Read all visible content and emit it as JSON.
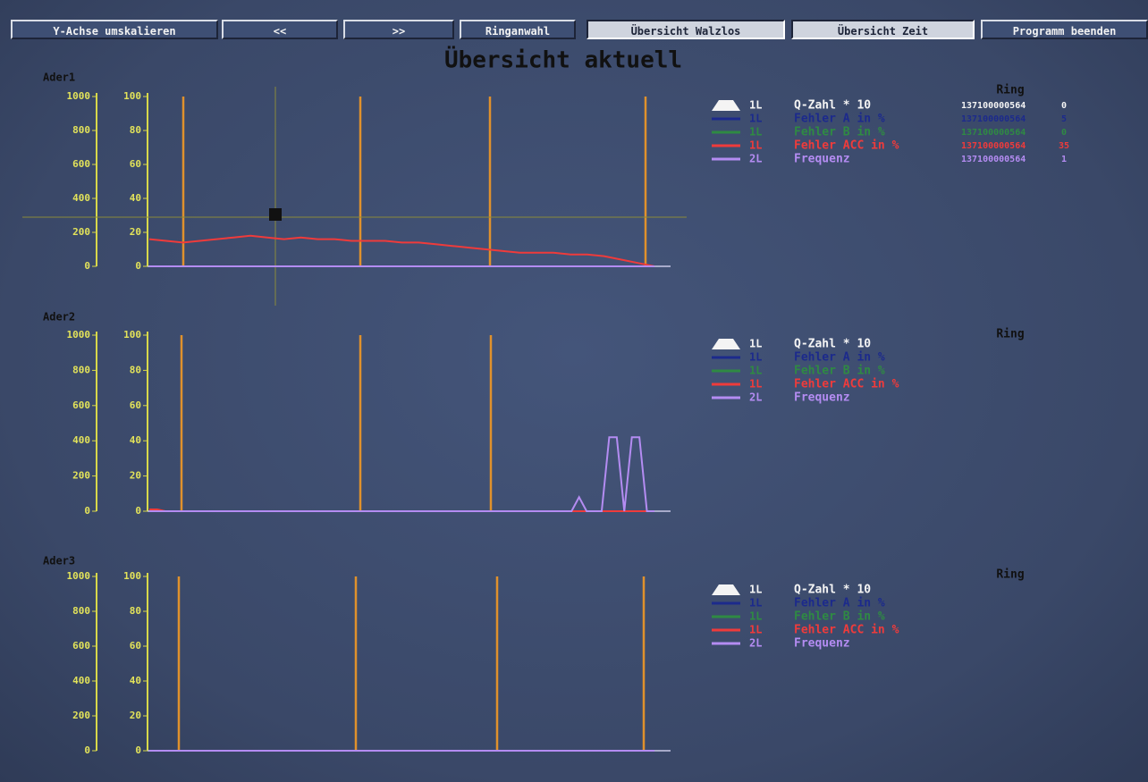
{
  "toolbar": {
    "buttons": [
      "Y-Achse umskalieren",
      "<<",
      ">>",
      "Ringanwahl",
      "Übersicht Walzlos",
      "Übersicht Zeit",
      "Programm beenden"
    ]
  },
  "title": "Übersicht aktuell",
  "left_axis_ticks": [
    0,
    200,
    400,
    600,
    800,
    1000
  ],
  "right_axis_ticks": [
    0,
    20,
    40,
    60,
    80,
    100
  ],
  "right_axis_max": 100,
  "ring_label": "Ring",
  "legend": [
    {
      "tag": "1L",
      "label": "Q-Zahl * 10",
      "color": "#f4f4f4"
    },
    {
      "tag": "1L",
      "label": "Fehler A in %",
      "color": "#1c2a8c"
    },
    {
      "tag": "1L",
      "label": "Fehler B in %",
      "color": "#2f8a43"
    },
    {
      "tag": "1L",
      "label": "Fehler ACC in %",
      "color": "#ef3b3b"
    },
    {
      "tag": "2L",
      "label": "Frequenz",
      "color": "#b48cf2"
    }
  ],
  "panels": [
    {
      "name": "Ader1",
      "ring_values": [
        {
          "id": "137100000564",
          "value": "0"
        },
        {
          "id": "137100000564",
          "value": "5"
        },
        {
          "id": "137100000564",
          "value": "0"
        },
        {
          "id": "137100000564",
          "value": "35"
        },
        {
          "id": "137100000564",
          "value": "1"
        }
      ],
      "series": [
        {
          "legend": 3,
          "values": [
            16,
            15,
            14,
            15,
            16,
            17,
            18,
            17,
            16,
            17,
            16,
            16,
            15,
            15,
            15,
            14,
            14,
            13,
            12,
            11,
            10,
            9,
            8,
            8,
            8,
            7,
            7,
            6,
            4,
            2,
            0
          ]
        },
        {
          "legend": 4,
          "values": [
            0,
            0,
            0,
            0,
            0,
            0,
            0,
            0,
            0,
            0,
            0,
            0,
            0,
            0,
            0,
            0,
            0,
            0,
            0,
            0,
            0,
            0,
            0,
            0,
            0,
            0,
            0,
            0,
            0,
            0,
            0
          ]
        }
      ]
    },
    {
      "name": "Ader2",
      "series": [
        {
          "legend": 3,
          "values": [
            1,
            1,
            0,
            0,
            0,
            0,
            0,
            0,
            0,
            0,
            0,
            0,
            0,
            0,
            0,
            0,
            0,
            0,
            0,
            0,
            0,
            0,
            0,
            0,
            0,
            0,
            0,
            0,
            0,
            0,
            0,
            0,
            0,
            0,
            0,
            0,
            0,
            0,
            0,
            0,
            0,
            0,
            0,
            0,
            0,
            0,
            0,
            0,
            0,
            0,
            0,
            0,
            0,
            0,
            0,
            0,
            0,
            0,
            0,
            0,
            0,
            0,
            0,
            0
          ]
        },
        {
          "legend": 4,
          "values": [
            0,
            0,
            0,
            0,
            0,
            0,
            0,
            0,
            0,
            0,
            0,
            0,
            0,
            0,
            0,
            0,
            0,
            0,
            0,
            0,
            0,
            0,
            0,
            0,
            0,
            0,
            0,
            0,
            0,
            0,
            0,
            0,
            0,
            0,
            0,
            0,
            0,
            0,
            0,
            0,
            0,
            0,
            0,
            0,
            0,
            0,
            0,
            0,
            0,
            0,
            0,
            0,
            0,
            0,
            0,
            0,
            0,
            8,
            0,
            0,
            0,
            42,
            42,
            0,
            42,
            42,
            0,
            0
          ]
        }
      ]
    },
    {
      "name": "Ader3",
      "series": [
        {
          "legend": 4,
          "values": [
            0,
            0,
            0,
            0,
            0,
            0,
            0,
            0,
            0,
            0,
            0,
            0,
            0,
            0,
            0,
            0,
            0,
            0,
            0,
            0
          ]
        }
      ]
    }
  ]
}
